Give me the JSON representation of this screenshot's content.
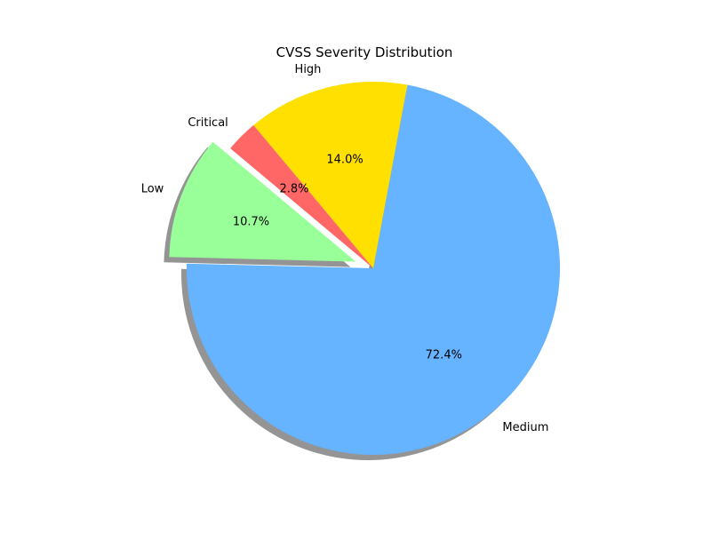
{
  "chart_data": {
    "type": "pie",
    "title": "CVSS Severity Distribution",
    "slices": [
      {
        "label": "Low",
        "value": 10.7,
        "pct_label": "10.7%",
        "color": "#99ff99",
        "exploded": true
      },
      {
        "label": "Medium",
        "value": 72.4,
        "pct_label": "72.4%",
        "color": "#66b3ff",
        "exploded": false
      },
      {
        "label": "High",
        "value": 14.0,
        "pct_label": "14.0%",
        "color": "#ffe000",
        "exploded": false
      },
      {
        "label": "Critical",
        "value": 2.8,
        "pct_label": "2.8%",
        "color": "#ff6666",
        "exploded": false
      }
    ],
    "shadow": true,
    "legend": false
  }
}
